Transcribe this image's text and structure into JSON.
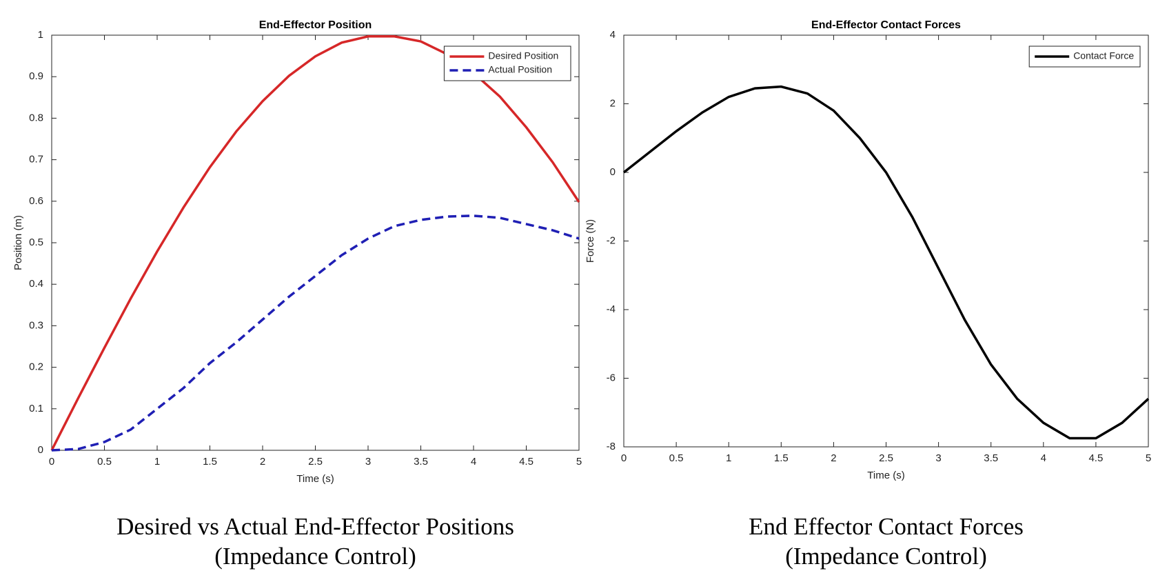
{
  "chart_data": [
    {
      "type": "line",
      "title": "End-Effector Position",
      "xlabel": "Time (s)",
      "ylabel": "Position (m)",
      "x": [
        0,
        0.25,
        0.5,
        0.75,
        1,
        1.25,
        1.5,
        1.75,
        2,
        2.25,
        2.5,
        2.75,
        3,
        3.25,
        3.5,
        3.75,
        4,
        4.25,
        4.5,
        4.75,
        5
      ],
      "series": [
        {
          "name": "Desired Position",
          "color": "#d62728",
          "linestyle": "solid",
          "values": [
            0,
            0.125,
            0.247,
            0.366,
            0.479,
            0.585,
            0.682,
            0.768,
            0.841,
            0.902,
            0.949,
            0.982,
            0.997,
            0.997,
            0.985,
            0.954,
            0.909,
            0.852,
            0.778,
            0.694,
            0.598
          ]
        },
        {
          "name": "Actual Position",
          "color": "#1f1fb4",
          "linestyle": "dashed",
          "values": [
            0,
            0.003,
            0.02,
            0.05,
            0.1,
            0.15,
            0.21,
            0.26,
            0.315,
            0.37,
            0.42,
            0.47,
            0.51,
            0.54,
            0.555,
            0.563,
            0.565,
            0.56,
            0.545,
            0.53,
            0.51
          ]
        }
      ],
      "xlim": [
        0,
        5
      ],
      "xticks": [
        0,
        0.5,
        1,
        1.5,
        2,
        2.5,
        3,
        3.5,
        4,
        4.5,
        5
      ],
      "ylim": [
        0,
        1
      ],
      "yticks": [
        0,
        0.1,
        0.2,
        0.3,
        0.4,
        0.5,
        0.6,
        0.7,
        0.8,
        0.9,
        1
      ],
      "legend": "upper right",
      "grid": false,
      "caption": [
        "Desired vs Actual End-Effector Positions",
        "(Impedance Control)"
      ]
    },
    {
      "type": "line",
      "title": "End-Effector Contact Forces",
      "xlabel": "Time (s)",
      "ylabel": "Force (N)",
      "x": [
        0,
        0.25,
        0.5,
        0.75,
        1,
        1.25,
        1.5,
        1.75,
        2,
        2.25,
        2.5,
        2.75,
        3,
        3.25,
        3.5,
        3.75,
        4,
        4.25,
        4.5,
        4.75,
        5
      ],
      "series": [
        {
          "name": "Contact Force",
          "color": "#000000",
          "linestyle": "solid",
          "values": [
            0,
            0.6,
            1.2,
            1.75,
            2.2,
            2.45,
            2.5,
            2.3,
            1.8,
            1.0,
            0.0,
            -1.3,
            -2.8,
            -4.3,
            -5.6,
            -6.6,
            -7.3,
            -7.75,
            -7.75,
            -7.3,
            -6.6
          ]
        }
      ],
      "xlim": [
        0,
        5
      ],
      "xticks": [
        0,
        0.5,
        1,
        1.5,
        2,
        2.5,
        3,
        3.5,
        4,
        4.5,
        5
      ],
      "ylim": [
        -8,
        4
      ],
      "yticks": [
        -8,
        -6,
        -4,
        -2,
        0,
        2,
        4
      ],
      "legend": "upper right",
      "grid": false,
      "caption": [
        "End Effector Contact Forces",
        "(Impedance Control)"
      ]
    }
  ]
}
